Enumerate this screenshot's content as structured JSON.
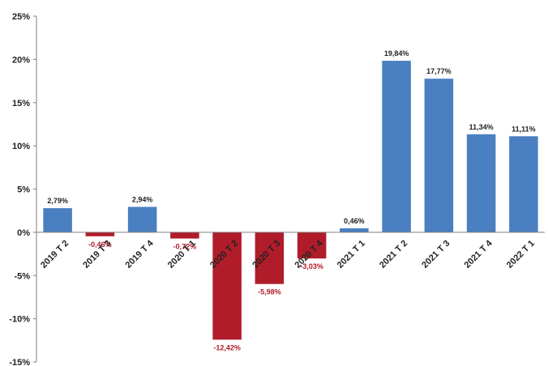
{
  "chart_data": {
    "type": "bar",
    "title": "",
    "xlabel": "",
    "ylabel": "",
    "ylim": [
      -15,
      25
    ],
    "yticks": [
      25,
      20,
      15,
      10,
      5,
      0,
      -5,
      -10,
      -15
    ],
    "ytick_labels": [
      "25%",
      "20%",
      "15%",
      "10%",
      "5%",
      "0%",
      "-5%",
      "-10%",
      "-15%"
    ],
    "grid": false,
    "legend": "none",
    "categories": [
      "2019 T 2",
      "2019 T 3",
      "2019 T 4",
      "2020 T 1",
      "2020 T 2",
      "2020 T 3",
      "2020 T 4",
      "2021 T 1",
      "2021 T 2",
      "2021 T 3",
      "2021 T 4",
      "2022 T 1"
    ],
    "values": [
      2.79,
      -0.46,
      2.94,
      -0.72,
      -12.42,
      -5.98,
      -3.03,
      0.46,
      19.84,
      17.77,
      11.34,
      11.11
    ],
    "data_labels": [
      "2,79%",
      "-0,46%",
      "2,94%",
      "-0,72%",
      "-12,42%",
      "-5,98%",
      "-3,03%",
      "0,46%",
      "19,84%",
      "17,77%",
      "11,34%",
      "11,11%"
    ],
    "colors": {
      "positive": "#4a7fc1",
      "negative": "#b01c2a",
      "positive_label": "#222222",
      "negative_label": "#b01c2a"
    }
  }
}
